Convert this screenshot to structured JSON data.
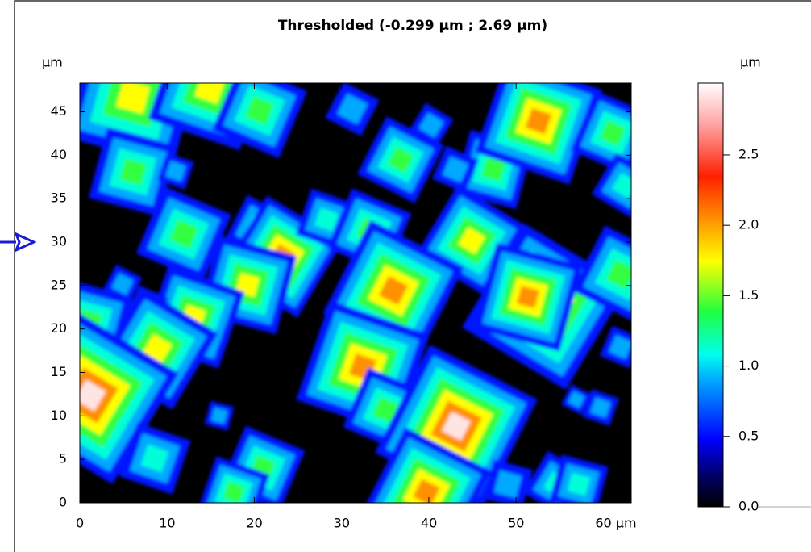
{
  "chart_data": {
    "type": "heatmap",
    "title": "Thresholded (-0.299 µm ; 2.69 µm)",
    "y_label": "µm",
    "xlim": [
      0,
      63.2
    ],
    "ylim": [
      0,
      48.3
    ],
    "xticks": [
      0,
      10,
      20,
      30,
      40,
      50,
      {
        "value": 60,
        "label": "60 µm"
      }
    ],
    "yticks": [
      0,
      5,
      10,
      15,
      20,
      25,
      30,
      35,
      40,
      45
    ],
    "colorbar": {
      "label": "µm",
      "lim": [
        0,
        3.01
      ],
      "ticks": [
        {
          "value": 0,
          "label": "0.0"
        },
        0.5,
        {
          "value": 1,
          "label": "1.0"
        },
        1.5,
        {
          "value": 2,
          "label": "2.0"
        },
        2.5
      ]
    }
  }
}
